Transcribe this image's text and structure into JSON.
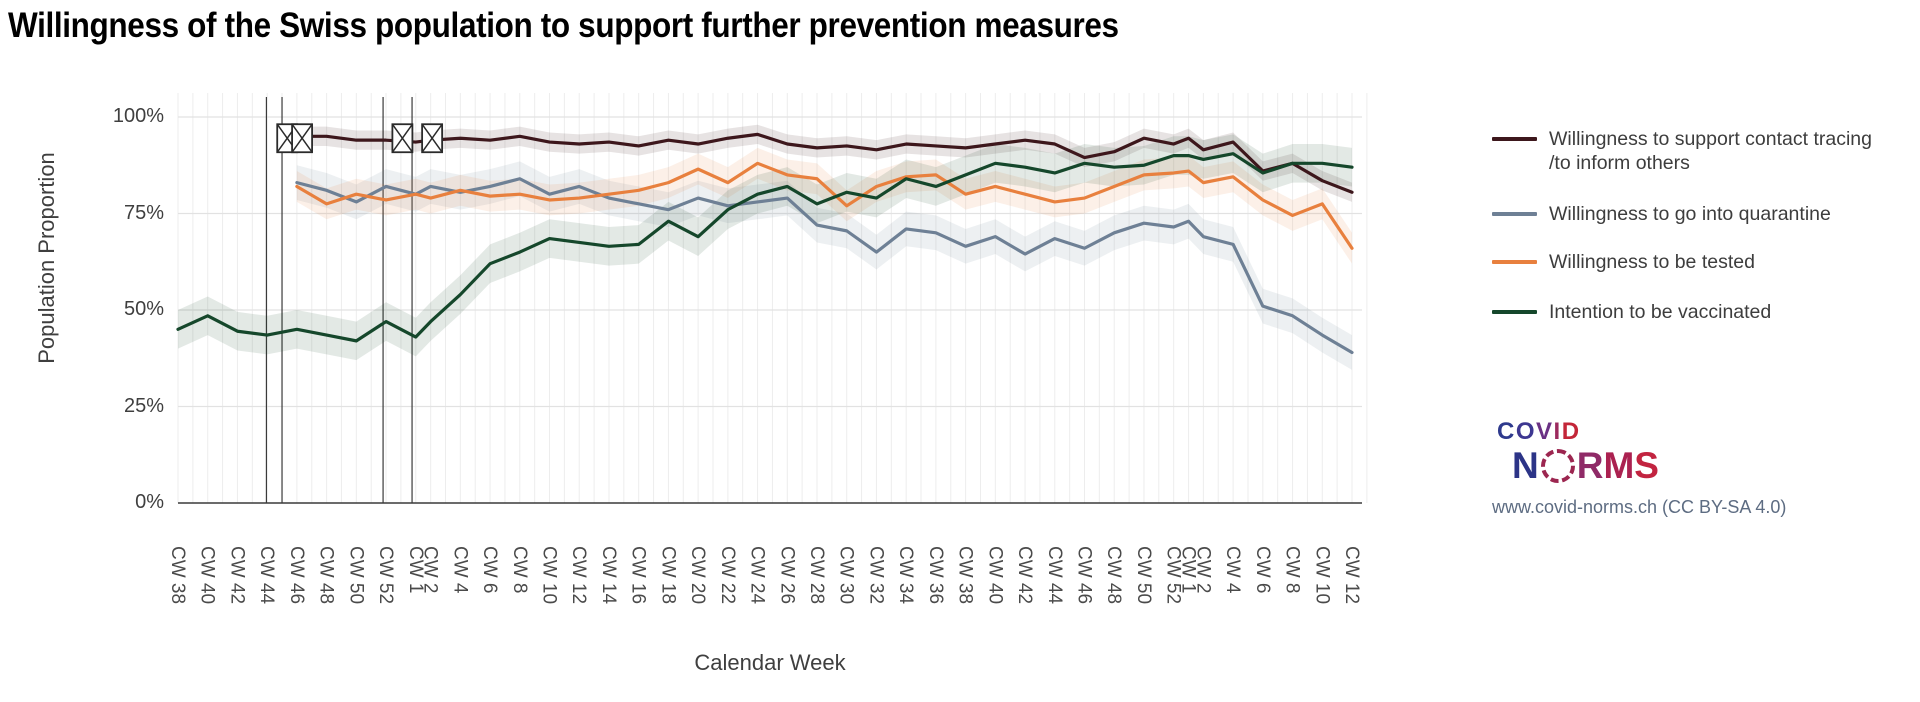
{
  "title": "Willingness of the Swiss population to support further prevention measures",
  "y_axis": {
    "label": "Population Proportion",
    "ticks": [
      {
        "label": "100%",
        "value": 100
      },
      {
        "label": "75%",
        "value": 75
      },
      {
        "label": "50%",
        "value": 50
      },
      {
        "label": "25%",
        "value": 25
      },
      {
        "label": "0%",
        "value": 0
      }
    ]
  },
  "x_axis": {
    "label": "Calendar Week"
  },
  "chart_data": {
    "type": "line",
    "title": "Willingness of the Swiss population to support further prevention measures",
    "xlabel": "Calendar Week",
    "ylabel": "Population Proportion",
    "ylim": [
      0,
      100
    ],
    "grid": "weekly vertical + 25% horizontal",
    "legend_position": "right",
    "categories": [
      "CW 38",
      "CW 40",
      "CW 42",
      "CW 44",
      "CW 46",
      "CW 48",
      "CW 50",
      "CW 52",
      "CW 1",
      "CW 2",
      "CW 4",
      "CW 6",
      "CW 8",
      "CW 10",
      "CW 12",
      "CW 14",
      "CW 16",
      "CW 18",
      "CW 20",
      "CW 22",
      "CW 24",
      "CW 26",
      "CW 28",
      "CW 30",
      "CW 32",
      "CW 34",
      "CW 36",
      "CW 38",
      "CW 40",
      "CW 42",
      "CW 44",
      "CW 46",
      "CW 48",
      "CW 50",
      "CW 52",
      "CW 1",
      "CW 2",
      "CW 4",
      "CW 6",
      "CW 8",
      "CW 10",
      "CW 12"
    ],
    "x_week_offsets": [
      0,
      2,
      4,
      6,
      8,
      10,
      12,
      14,
      16,
      17,
      19,
      21,
      23,
      25,
      27,
      29,
      31,
      33,
      35,
      37,
      39,
      41,
      43,
      45,
      47,
      49,
      51,
      53,
      55,
      57,
      59,
      61,
      63,
      65,
      67,
      68,
      69,
      71,
      73,
      75,
      77,
      79
    ],
    "total_weeks": 79,
    "series": [
      {
        "name": "Willingness to support contact tracing /to inform others",
        "color": "#3d171c",
        "band_halfwidth": 2.5,
        "values": [
          null,
          null,
          null,
          null,
          95,
          95,
          94,
          94,
          93.5,
          94,
          94.5,
          94,
          95,
          93.5,
          93,
          93.5,
          92.5,
          94,
          93,
          94.5,
          95.5,
          93,
          92,
          92.5,
          91.5,
          93,
          92.5,
          92,
          93,
          94,
          93,
          89.5,
          91,
          94.5,
          93,
          94.5,
          91.5,
          93.5,
          86,
          88,
          83.5,
          80.5
        ]
      },
      {
        "name": "Willingness to go into quarantine",
        "color": "#6e8095",
        "band_halfwidth": 4.5,
        "values": [
          null,
          null,
          null,
          null,
          83,
          81,
          78,
          82,
          80,
          82,
          80.5,
          82,
          84,
          80,
          82,
          79,
          77.5,
          76,
          79,
          77,
          78,
          79,
          72,
          70.5,
          65,
          71,
          70,
          66.5,
          69,
          64.5,
          68.5,
          66,
          70,
          72.5,
          71.5,
          73,
          69,
          67,
          51,
          48.5,
          43.5,
          39
        ]
      },
      {
        "name": "Willingness to be tested",
        "color": "#e8803e",
        "band_halfwidth": 4,
        "values": [
          null,
          null,
          null,
          null,
          82,
          77.5,
          80,
          78.5,
          80,
          79,
          81,
          79.5,
          80,
          78.5,
          79,
          80,
          81,
          83,
          86.5,
          83,
          88,
          85,
          84,
          77,
          82,
          84.5,
          85,
          80,
          82,
          80,
          78,
          79,
          82,
          85,
          85.5,
          86,
          83,
          84.5,
          78.5,
          74.5,
          77.5,
          66
        ]
      },
      {
        "name": "Intention to be vaccinated",
        "color": "#15472b",
        "band_halfwidth": 5,
        "values": [
          45,
          48.5,
          44.5,
          43.5,
          45,
          43.5,
          42,
          47,
          43,
          47,
          54,
          62,
          65,
          68.5,
          67.5,
          66.5,
          67,
          73,
          69,
          76,
          80,
          82,
          77.5,
          80.5,
          79,
          84,
          82,
          85,
          88,
          87,
          85.5,
          88,
          87,
          87.5,
          90,
          90,
          89,
          90.5,
          85.5,
          88,
          88,
          87
        ]
      }
    ],
    "event_lines_week_offsets": [
      5.95,
      7.0,
      13.8,
      15.75
    ],
    "event_markers": [
      {
        "week_offset": 7.35,
        "value": 94.5,
        "symbol": "crossed-square"
      },
      {
        "week_offset": 8.35,
        "value": 94.5,
        "symbol": "crossed-square"
      },
      {
        "week_offset": 15.1,
        "value": 94.5,
        "symbol": "crossed-square"
      },
      {
        "week_offset": 17.1,
        "value": 94.5,
        "symbol": "crossed-square"
      }
    ]
  },
  "legend": {
    "items": [
      {
        "label": "Willingness to support contact tracing",
        "label2": "/to inform others"
      },
      {
        "label": "Willingness to go into quarantine",
        "label2": ""
      },
      {
        "label": "Willingness to be tested",
        "label2": ""
      },
      {
        "label": "Intention to be vaccinated",
        "label2": ""
      }
    ]
  },
  "branding": {
    "logo_line1": "COVID",
    "logo_line1_colors": [
      "#2e3a8d",
      "#3d3791",
      "#6a3184",
      "#9c2a5e",
      "#c32638"
    ],
    "logo_n": "N",
    "logo_n_color": "#2c3487",
    "logo_rms": "RMS",
    "logo_rms_colors": [
      "#8f2a67",
      "#ab2150",
      "#c22440"
    ],
    "url": "www.covid-norms.ch (CC BY-SA 4.0)"
  }
}
